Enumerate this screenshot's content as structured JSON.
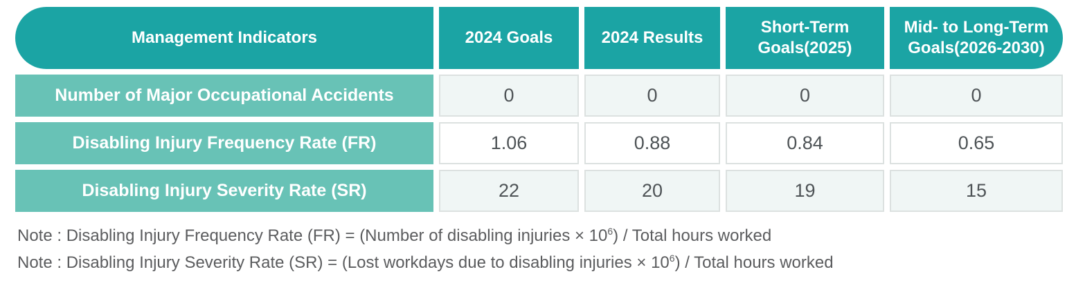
{
  "table": {
    "headers": [
      "Management Indicators",
      "2024 Goals",
      "2024 Results",
      "Short-Term Goals(2025)",
      "Mid- to Long-Term Goals(2026-2030)"
    ],
    "rows": [
      {
        "label": "Number of Major Occupational Accidents",
        "values": [
          "0",
          "0",
          "0",
          "0"
        ]
      },
      {
        "label": "Disabling Injury Frequency Rate (FR)",
        "values": [
          "1.06",
          "0.88",
          "0.84",
          "0.65"
        ]
      },
      {
        "label": "Disabling Injury Severity Rate (SR)",
        "values": [
          "22",
          "20",
          "19",
          "15"
        ]
      }
    ]
  },
  "chart_data": {
    "type": "table",
    "columns": [
      "Management Indicators",
      "2024 Goals",
      "2024 Results",
      "Short-Term Goals(2025)",
      "Mid- to Long-Term Goals(2026-2030)"
    ],
    "rows": [
      [
        "Number of Major Occupational Accidents",
        0,
        0,
        0,
        0
      ],
      [
        "Disabling Injury Frequency Rate (FR)",
        1.06,
        0.88,
        0.84,
        0.65
      ],
      [
        "Disabling Injury Severity Rate (SR)",
        22,
        20,
        19,
        15
      ]
    ]
  },
  "notes": [
    {
      "prefix": "Note : Disabling Injury Frequency Rate (FR) = (Number of disabling injuries × 10",
      "superscript": "6",
      "suffix": ") / Total hours worked"
    },
    {
      "prefix": "Note : Disabling Injury Severity Rate (SR) = (Lost workdays due to disabling injuries × 10",
      "superscript": "6",
      "suffix": ") / Total hours worked"
    }
  ],
  "colors": {
    "header_teal": "#1BA4A4",
    "label_teal": "#68C2B6",
    "row_alt_bg": "#F0F6F5",
    "row_bg": "#FFFFFF",
    "cell_border": "#DCE1E0",
    "value_text": "#4E5356",
    "note_text": "#5B5C5E"
  }
}
